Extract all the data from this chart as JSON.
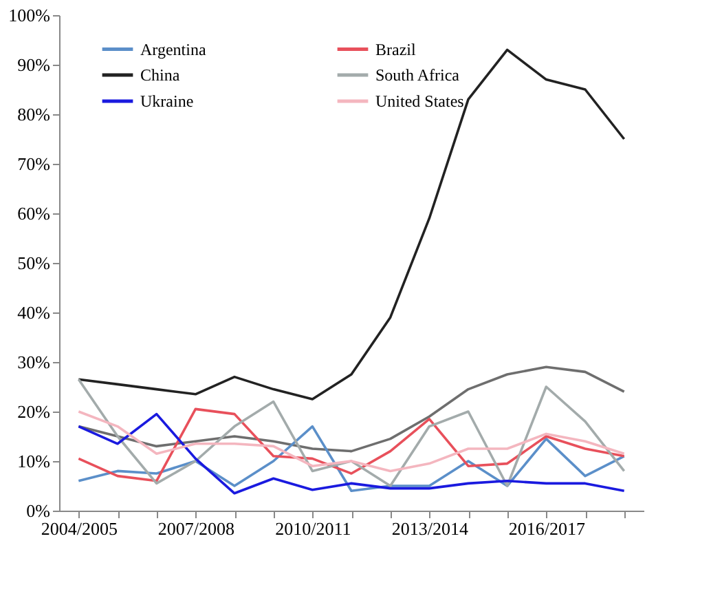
{
  "chart_data": {
    "type": "line",
    "categories": [
      "2004/2005",
      null,
      null,
      "2007/2008",
      null,
      null,
      "2010/2011",
      null,
      null,
      "2013/2014",
      null,
      null,
      "2016/2017",
      null,
      null
    ],
    "series": [
      {
        "name": "Argentina",
        "color": "#5b8fc9",
        "values": [
          6,
          8,
          7.5,
          10,
          5,
          10,
          17,
          4,
          5,
          5,
          10,
          5,
          14.5,
          7,
          11
        ]
      },
      {
        "name": "Brazil",
        "color": "#e8505b",
        "values": [
          10.5,
          7,
          6,
          20.5,
          19.5,
          11,
          10.5,
          7.5,
          12,
          18.5,
          9,
          9.5,
          15,
          12.5,
          11
        ]
      },
      {
        "name": "China",
        "color": "#222222",
        "values": [
          26.5,
          25.5,
          24.5,
          23.5,
          27,
          24.5,
          22.5,
          27.5,
          39,
          59,
          83,
          93,
          87,
          85,
          75
        ]
      },
      {
        "name": "South Africa",
        "color": "#a3abab",
        "values": [
          26.5,
          15,
          5.5,
          10,
          17,
          22,
          8,
          10,
          5,
          17,
          20,
          5,
          25,
          18,
          8
        ]
      },
      {
        "name": "Ukraine",
        "color": "#1a1adf",
        "values": [
          17,
          13.5,
          19.5,
          10.5,
          3.5,
          6.5,
          4.2,
          5.5,
          4.5,
          4.5,
          5.5,
          6,
          5.5,
          5.5,
          4
        ]
      },
      {
        "name": "United States",
        "color": "#f4b6bf",
        "values": [
          20,
          17,
          11.5,
          13.5,
          13.5,
          13,
          9,
          10,
          8,
          9.5,
          12.5,
          12.5,
          15.5,
          14,
          11.5
        ]
      },
      {
        "color": "#6e6e6e",
        "values": [
          17,
          15,
          13,
          14,
          15,
          14,
          12.5,
          12,
          14.5,
          19,
          24.5,
          27.5,
          29,
          28,
          24
        ]
      }
    ],
    "ylim": [
      0,
      100
    ],
    "yticks": [
      {
        "value": 0,
        "label": "0%"
      },
      {
        "value": 10,
        "label": "10%"
      },
      {
        "value": 20,
        "label": "20%"
      },
      {
        "value": 30,
        "label": "30%"
      },
      {
        "value": 40,
        "label": "40%"
      },
      {
        "value": 50,
        "label": "50%"
      },
      {
        "value": 60,
        "label": "60%"
      },
      {
        "value": 70,
        "label": "70%"
      },
      {
        "value": 80,
        "label": "80%"
      },
      {
        "value": 90,
        "label": "90%"
      },
      {
        "value": 100,
        "label": "100%"
      }
    ],
    "grid": false,
    "legend": "top",
    "marker": "none",
    "line_style": "solid"
  }
}
